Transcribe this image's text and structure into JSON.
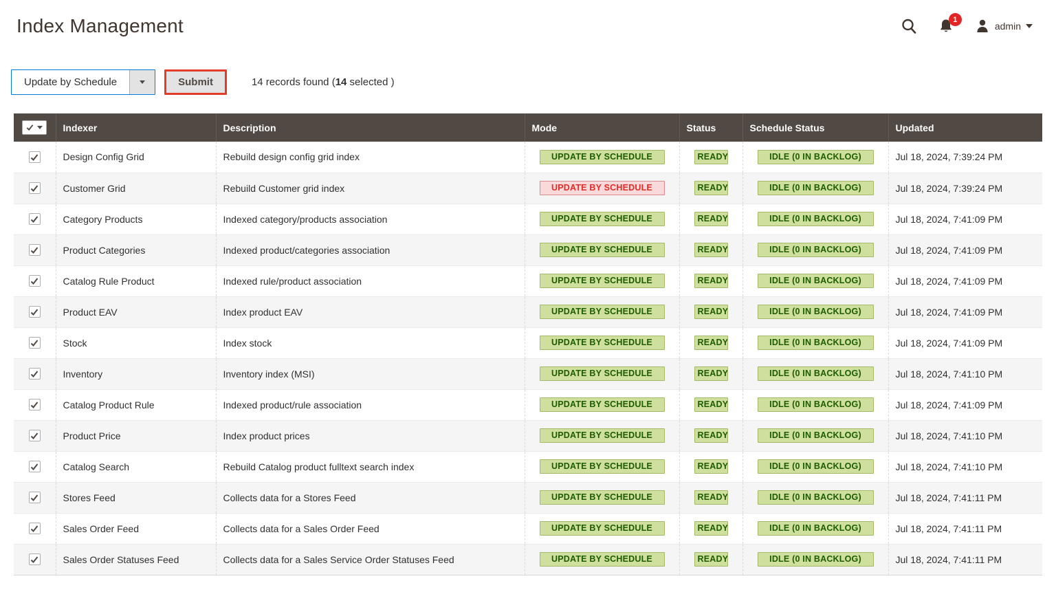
{
  "page": {
    "title": "Index Management"
  },
  "header": {
    "notifications": {
      "count": "1"
    },
    "user": {
      "name": "admin"
    }
  },
  "toolbar": {
    "bulk_action": {
      "value": "Update by Schedule"
    },
    "submit_label": "Submit",
    "records": {
      "prefix": "14 records found (",
      "selected_count": "14",
      "suffix": " selected )"
    }
  },
  "table": {
    "columns": {
      "indexer": "Indexer",
      "description": "Description",
      "mode": "Mode",
      "status": "Status",
      "schedule_status": "Schedule Status",
      "updated": "Updated"
    },
    "rows": [
      {
        "checked": true,
        "indexer": "Design Config Grid",
        "description": "Rebuild design config grid index",
        "mode": {
          "label": "UPDATE BY SCHEDULE",
          "severity": "notice"
        },
        "status": {
          "label": "READY",
          "severity": "notice"
        },
        "schedule_status": {
          "label": "IDLE (0 IN BACKLOG)",
          "severity": "notice"
        },
        "updated": "Jul 18, 2024, 7:39:24 PM"
      },
      {
        "checked": true,
        "indexer": "Customer Grid",
        "description": "Rebuild Customer grid index",
        "mode": {
          "label": "UPDATE BY SCHEDULE",
          "severity": "critical"
        },
        "status": {
          "label": "READY",
          "severity": "notice"
        },
        "schedule_status": {
          "label": "IDLE (0 IN BACKLOG)",
          "severity": "notice"
        },
        "updated": "Jul 18, 2024, 7:39:24 PM"
      },
      {
        "checked": true,
        "indexer": "Category Products",
        "description": "Indexed category/products association",
        "mode": {
          "label": "UPDATE BY SCHEDULE",
          "severity": "notice"
        },
        "status": {
          "label": "READY",
          "severity": "notice"
        },
        "schedule_status": {
          "label": "IDLE (0 IN BACKLOG)",
          "severity": "notice"
        },
        "updated": "Jul 18, 2024, 7:41:09 PM"
      },
      {
        "checked": true,
        "indexer": "Product Categories",
        "description": "Indexed product/categories association",
        "mode": {
          "label": "UPDATE BY SCHEDULE",
          "severity": "notice"
        },
        "status": {
          "label": "READY",
          "severity": "notice"
        },
        "schedule_status": {
          "label": "IDLE (0 IN BACKLOG)",
          "severity": "notice"
        },
        "updated": "Jul 18, 2024, 7:41:09 PM"
      },
      {
        "checked": true,
        "indexer": "Catalog Rule Product",
        "description": "Indexed rule/product association",
        "mode": {
          "label": "UPDATE BY SCHEDULE",
          "severity": "notice"
        },
        "status": {
          "label": "READY",
          "severity": "notice"
        },
        "schedule_status": {
          "label": "IDLE (0 IN BACKLOG)",
          "severity": "notice"
        },
        "updated": "Jul 18, 2024, 7:41:09 PM"
      },
      {
        "checked": true,
        "indexer": "Product EAV",
        "description": "Index product EAV",
        "mode": {
          "label": "UPDATE BY SCHEDULE",
          "severity": "notice"
        },
        "status": {
          "label": "READY",
          "severity": "notice"
        },
        "schedule_status": {
          "label": "IDLE (0 IN BACKLOG)",
          "severity": "notice"
        },
        "updated": "Jul 18, 2024, 7:41:09 PM"
      },
      {
        "checked": true,
        "indexer": "Stock",
        "description": "Index stock",
        "mode": {
          "label": "UPDATE BY SCHEDULE",
          "severity": "notice"
        },
        "status": {
          "label": "READY",
          "severity": "notice"
        },
        "schedule_status": {
          "label": "IDLE (0 IN BACKLOG)",
          "severity": "notice"
        },
        "updated": "Jul 18, 2024, 7:41:09 PM"
      },
      {
        "checked": true,
        "indexer": "Inventory",
        "description": "Inventory index (MSI)",
        "mode": {
          "label": "UPDATE BY SCHEDULE",
          "severity": "notice"
        },
        "status": {
          "label": "READY",
          "severity": "notice"
        },
        "schedule_status": {
          "label": "IDLE (0 IN BACKLOG)",
          "severity": "notice"
        },
        "updated": "Jul 18, 2024, 7:41:10 PM"
      },
      {
        "checked": true,
        "indexer": "Catalog Product Rule",
        "description": "Indexed product/rule association",
        "mode": {
          "label": "UPDATE BY SCHEDULE",
          "severity": "notice"
        },
        "status": {
          "label": "READY",
          "severity": "notice"
        },
        "schedule_status": {
          "label": "IDLE (0 IN BACKLOG)",
          "severity": "notice"
        },
        "updated": "Jul 18, 2024, 7:41:09 PM"
      },
      {
        "checked": true,
        "indexer": "Product Price",
        "description": "Index product prices",
        "mode": {
          "label": "UPDATE BY SCHEDULE",
          "severity": "notice"
        },
        "status": {
          "label": "READY",
          "severity": "notice"
        },
        "schedule_status": {
          "label": "IDLE (0 IN BACKLOG)",
          "severity": "notice"
        },
        "updated": "Jul 18, 2024, 7:41:10 PM"
      },
      {
        "checked": true,
        "indexer": "Catalog Search",
        "description": "Rebuild Catalog product fulltext search index",
        "mode": {
          "label": "UPDATE BY SCHEDULE",
          "severity": "notice"
        },
        "status": {
          "label": "READY",
          "severity": "notice"
        },
        "schedule_status": {
          "label": "IDLE (0 IN BACKLOG)",
          "severity": "notice"
        },
        "updated": "Jul 18, 2024, 7:41:10 PM"
      },
      {
        "checked": true,
        "indexer": "Stores Feed",
        "description": "Collects data for a Stores Feed",
        "mode": {
          "label": "UPDATE BY SCHEDULE",
          "severity": "notice"
        },
        "status": {
          "label": "READY",
          "severity": "notice"
        },
        "schedule_status": {
          "label": "IDLE (0 IN BACKLOG)",
          "severity": "notice"
        },
        "updated": "Jul 18, 2024, 7:41:11 PM"
      },
      {
        "checked": true,
        "indexer": "Sales Order Feed",
        "description": "Collects data for a Sales Order Feed",
        "mode": {
          "label": "UPDATE BY SCHEDULE",
          "severity": "notice"
        },
        "status": {
          "label": "READY",
          "severity": "notice"
        },
        "schedule_status": {
          "label": "IDLE (0 IN BACKLOG)",
          "severity": "notice"
        },
        "updated": "Jul 18, 2024, 7:41:11 PM"
      },
      {
        "checked": true,
        "indexer": "Sales Order Statuses Feed",
        "description": "Collects data for a Sales Service Order Statuses Feed",
        "mode": {
          "label": "UPDATE BY SCHEDULE",
          "severity": "notice"
        },
        "status": {
          "label": "READY",
          "severity": "notice"
        },
        "schedule_status": {
          "label": "IDLE (0 IN BACKLOG)",
          "severity": "notice"
        },
        "updated": "Jul 18, 2024, 7:41:11 PM"
      }
    ]
  },
  "colors": {
    "header_bg": "#514943",
    "title_text": "#41362f",
    "accent_red": "#e22626",
    "focus_blue": "#007bdb",
    "submit_focus_border": "#e23c2a",
    "badge_notice_bg": "#cfdf9e",
    "badge_notice_border": "#a3b969",
    "badge_notice_text": "#1d5c00",
    "badge_critical_bg": "#f9d9d9",
    "badge_critical_border": "#d98a8a",
    "badge_critical_text": "#e02b27",
    "zebra_row_bg": "#f5f5f5"
  }
}
